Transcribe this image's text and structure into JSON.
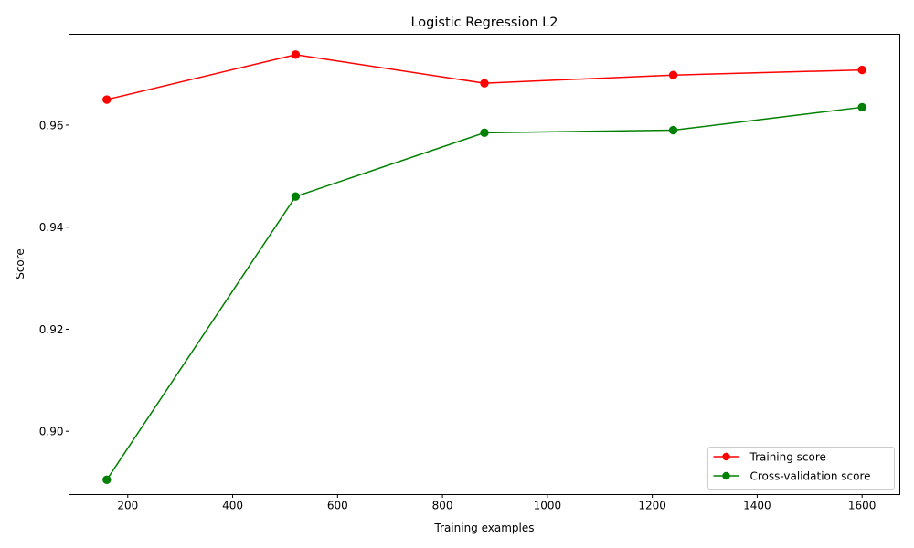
{
  "chart_data": {
    "type": "line",
    "title": "Logistic Regression L2",
    "xlabel": "Training examples",
    "ylabel": "Score",
    "x": [
      160,
      520,
      880,
      1240,
      1600
    ],
    "series": [
      {
        "name": "Training score",
        "color": "#ff0000",
        "marker": "circle",
        "values": [
          0.965,
          0.9738,
          0.9682,
          0.9698,
          0.9708
        ]
      },
      {
        "name": "Cross-validation score",
        "color": "#008000",
        "marker": "circle",
        "values": [
          0.8905,
          0.946,
          0.9585,
          0.959,
          0.9635
        ]
      }
    ],
    "xlim": [
      88,
      1672
    ],
    "ylim": [
      0.8876,
      0.9778
    ],
    "xticks": [
      200,
      400,
      600,
      800,
      1000,
      1200,
      1400,
      1600
    ],
    "xtick_labels": [
      "200",
      "400",
      "600",
      "800",
      "1000",
      "1200",
      "1400",
      "1600"
    ],
    "yticks": [
      0.9,
      0.92,
      0.94,
      0.96
    ],
    "ytick_labels": [
      "0.90",
      "0.92",
      "0.94",
      "0.96"
    ],
    "grid": false,
    "legend_position": "lower-right"
  }
}
